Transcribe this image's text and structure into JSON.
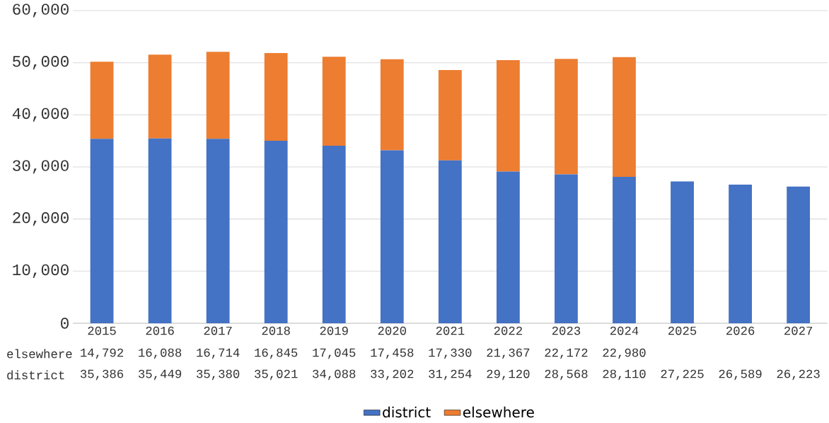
{
  "chart_data": {
    "type": "bar",
    "stacked": true,
    "categories": [
      "2015",
      "2016",
      "2017",
      "2018",
      "2019",
      "2020",
      "2021",
      "2022",
      "2023",
      "2024",
      "2025",
      "2026",
      "2027"
    ],
    "series": [
      {
        "name": "district",
        "color": "#4472c4",
        "values": [
          35386,
          35449,
          35380,
          35021,
          34088,
          33202,
          31254,
          29120,
          28568,
          28110,
          27225,
          26589,
          26223
        ],
        "value_labels": [
          "35,386",
          "35,449",
          "35,380",
          "35,021",
          "34,088",
          "33,202",
          "31,254",
          "29,120",
          "28,568",
          "28,110",
          "27,225",
          "26,589",
          "26,223"
        ]
      },
      {
        "name": "elsewhere",
        "color": "#ed7d31",
        "values": [
          14792,
          16088,
          16714,
          16845,
          17045,
          17458,
          17330,
          21367,
          22172,
          22980,
          null,
          null,
          null
        ],
        "value_labels": [
          "14,792",
          "16,088",
          "16,714",
          "16,845",
          "17,045",
          "17,458",
          "17,330",
          "21,367",
          "22,172",
          "22,980",
          null,
          null,
          null
        ]
      }
    ],
    "ylim": [
      0,
      60000
    ],
    "yticks": [
      0,
      {
        "value": 10000,
        "label": "10,000"
      },
      {
        "value": 20000,
        "label": "20,000"
      },
      {
        "value": 30000,
        "label": "30,000"
      },
      {
        "value": 40000,
        "label": "40,000"
      },
      {
        "value": 50000,
        "label": "50,000"
      },
      {
        "value": 60000,
        "label": "60,000"
      }
    ],
    "grid": "y",
    "legend": "bottom"
  }
}
